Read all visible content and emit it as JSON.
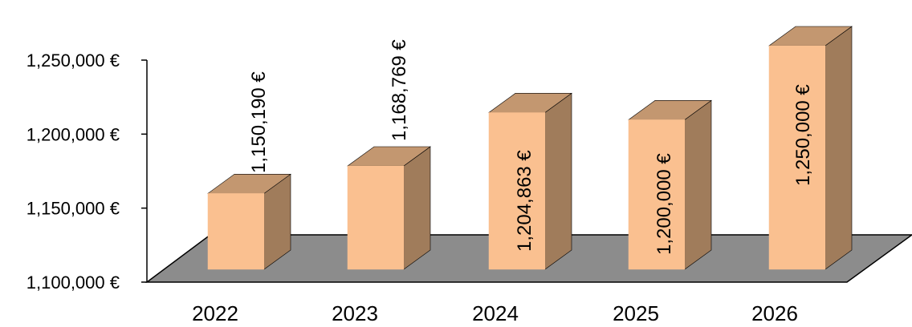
{
  "chart_data": {
    "type": "bar",
    "style": "3d-column",
    "categories": [
      "2022",
      "2023",
      "2024",
      "2025",
      "2026"
    ],
    "values": [
      1150190,
      1168769,
      1204863,
      1200000,
      1250000
    ],
    "data_labels": [
      "1,150,190 €",
      "1,168,769 €",
      "1,204,863 €",
      "1,200,000 €",
      "1,250,000 €"
    ],
    "y_ticks": [
      "1,100,000 €",
      "1,150,000 €",
      "1,200,000 €",
      "1,250,000 €"
    ],
    "ylim": [
      1100000,
      1250000
    ],
    "title": "",
    "xlabel": "",
    "ylabel": "",
    "grid": false,
    "legend": "none",
    "colors": {
      "bar_front": "#FAC090",
      "bar_top": "#C39770",
      "bar_side": "#A07C5B",
      "floor": "#8C8C8C",
      "edge": "#000000"
    }
  }
}
